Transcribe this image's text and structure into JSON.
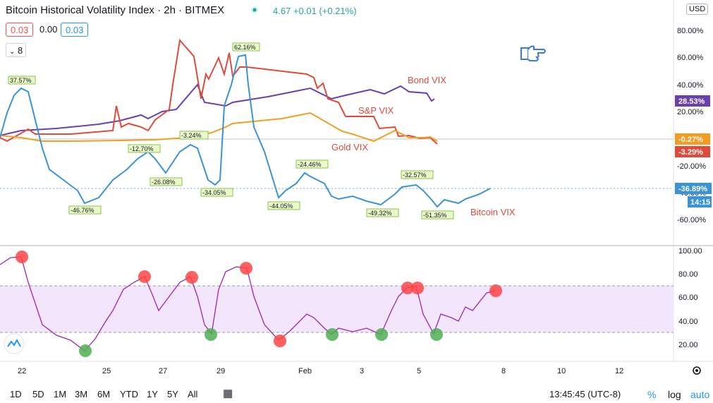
{
  "header": {
    "title": "Bitcoin Historical Volatility Index · 2h · BITMEX",
    "price": "4.67 +0.01 (+0.21%)",
    "open_value": "0.03",
    "mid_value": "0.00",
    "close_value": "0.03",
    "interval_value": "8",
    "currency": "USD"
  },
  "colors": {
    "bitcoin": "#3a93d6",
    "bond": "#6a3fb0",
    "sp": "#e04a3b",
    "gold": "#f0a020",
    "rsi": "#9c27b0",
    "rsi_band": "#f3e5fb",
    "overbought": "#f44",
    "oversold": "#4caf50"
  },
  "series_labels": {
    "bond": "Bond VIX",
    "sp": "S&P VIX",
    "gold": "Gold VIX",
    "bitcoin": "Bitcoin VIX"
  },
  "price_axis": [
    "80.00%",
    "60.00%",
    "40.00%",
    "20.00%",
    "-20.00%",
    "-40.00%",
    "-60.00%"
  ],
  "price_tags": {
    "bond": "28.53%",
    "gold": "-0.27%",
    "sp": "-3.29%",
    "bitcoin": "-36.89%",
    "countdown": "14:15"
  },
  "rsi_axis": [
    "100.00",
    "80.00",
    "60.00",
    "40.00",
    "20.00"
  ],
  "time_axis": [
    "22",
    "25",
    "27",
    "29",
    "Feb",
    "3",
    "5",
    "8",
    "10",
    "12"
  ],
  "annotations": [
    "37.57%",
    "-46.76%",
    "-12.70%",
    "-26.08%",
    "-3.24%",
    "-34.05%",
    "62.16%",
    "-44.05%",
    "-24.46%",
    "-49.32%",
    "-32.57%",
    "-51.35%"
  ],
  "range_buttons": [
    "1D",
    "5D",
    "1M",
    "3M",
    "6M",
    "YTD",
    "1Y",
    "5Y",
    "All"
  ],
  "bottom_right": {
    "time": "13:45:45 (UTC-8)",
    "percent": "%",
    "log": "log",
    "auto": "auto"
  },
  "chart_data": {
    "type": "line",
    "title": "Bitcoin Historical Volatility Index · 2h · BITMEX",
    "x_ticks": [
      "22",
      "25",
      "27",
      "29",
      "Feb",
      "3",
      "5",
      "8",
      "10",
      "12"
    ],
    "ylim": [
      -80,
      100
    ],
    "series": [
      {
        "name": "Bitcoin VIX",
        "values": [
          5,
          37.57,
          -10,
          -35,
          -46.76,
          -35,
          -20,
          -12.7,
          -26.08,
          -3.24,
          -34.05,
          40,
          62.16,
          5,
          -44.05,
          -24.46,
          -40,
          -49.32,
          -32.57,
          -51.35,
          -45,
          -36.89
        ]
      },
      {
        "name": "Bond VIX",
        "values": [
          0,
          5,
          8,
          12,
          18,
          22,
          30,
          40,
          35,
          30,
          38,
          37,
          32,
          30,
          28.53
        ]
      },
      {
        "name": "S&P VIX",
        "values": [
          0,
          8,
          5,
          30,
          72,
          50,
          55,
          55,
          52,
          45,
          28,
          10,
          5,
          -3.29
        ]
      },
      {
        "name": "Gold VIX",
        "values": [
          0,
          0,
          -2,
          -2,
          0,
          8,
          12,
          18,
          5,
          0,
          6,
          0,
          -0.27
        ]
      }
    ]
  }
}
